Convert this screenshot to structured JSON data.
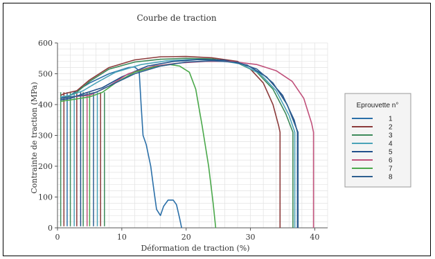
{
  "chart_data": {
    "type": "line",
    "title": "Courbe de traction",
    "xlabel": "Déformation de traction (%)",
    "ylabel": "Contrainte de traction (MPa)",
    "xlim": [
      0,
      42
    ],
    "ylim": [
      0,
      600
    ],
    "xticks": [
      0,
      10,
      20,
      30,
      40
    ],
    "yticks": [
      0,
      100,
      200,
      300,
      400,
      500,
      600
    ],
    "grid": true,
    "legend_position": "right",
    "legend_title": "Eprouvette n°",
    "series": [
      {
        "name": "1",
        "color": "#2a6fa8",
        "points": [
          [
            0.5,
            420
          ],
          [
            1,
            425
          ],
          [
            2,
            430
          ],
          [
            3,
            445
          ],
          [
            5,
            470
          ],
          [
            8,
            500
          ],
          [
            11,
            520
          ],
          [
            12,
            522
          ],
          [
            12.7,
            510
          ],
          [
            13,
            400
          ],
          [
            13.3,
            300
          ],
          [
            13.8,
            270
          ],
          [
            14.5,
            200
          ],
          [
            15,
            120
          ],
          [
            15.4,
            60
          ],
          [
            16,
            40
          ],
          [
            16.5,
            70
          ],
          [
            17.2,
            90
          ],
          [
            18,
            90
          ],
          [
            18.5,
            75
          ],
          [
            19,
            30
          ],
          [
            19.3,
            0
          ]
        ]
      },
      {
        "name": "2",
        "color": "#8b3a3a",
        "points": [
          [
            0.5,
            430
          ],
          [
            1,
            435
          ],
          [
            2,
            440
          ],
          [
            3,
            445
          ],
          [
            5,
            480
          ],
          [
            8,
            520
          ],
          [
            12,
            545
          ],
          [
            16,
            555
          ],
          [
            20,
            556
          ],
          [
            24,
            552
          ],
          [
            28,
            540
          ],
          [
            30,
            515
          ],
          [
            32,
            470
          ],
          [
            33.5,
            400
          ],
          [
            34.4,
            330
          ],
          [
            34.6,
            310
          ],
          [
            34.6,
            0
          ]
        ]
      },
      {
        "name": "3",
        "color": "#3d8a5a",
        "points": [
          [
            0.7,
            420
          ],
          [
            1.5,
            425
          ],
          [
            3,
            440
          ],
          [
            5,
            475
          ],
          [
            8,
            515
          ],
          [
            12,
            538
          ],
          [
            16,
            547
          ],
          [
            20,
            550
          ],
          [
            24,
            548
          ],
          [
            28,
            535
          ],
          [
            31,
            505
          ],
          [
            33.5,
            450
          ],
          [
            35.5,
            370
          ],
          [
            36.6,
            310
          ],
          [
            36.6,
            0
          ]
        ]
      },
      {
        "name": "4",
        "color": "#4aa3b8",
        "points": [
          [
            0.5,
            425
          ],
          [
            2,
            430
          ],
          [
            4,
            445
          ],
          [
            6,
            470
          ],
          [
            9,
            505
          ],
          [
            13,
            530
          ],
          [
            17,
            542
          ],
          [
            21,
            546
          ],
          [
            25,
            544
          ],
          [
            28.5,
            532
          ],
          [
            31.5,
            500
          ],
          [
            34,
            445
          ],
          [
            36,
            365
          ],
          [
            36.9,
            310
          ],
          [
            36.9,
            0
          ]
        ]
      },
      {
        "name": "5",
        "color": "#1f4f8a",
        "points": [
          [
            0.5,
            415
          ],
          [
            2,
            420
          ],
          [
            4,
            435
          ],
          [
            7,
            455
          ],
          [
            10,
            490
          ],
          [
            14,
            525
          ],
          [
            18,
            540
          ],
          [
            22,
            546
          ],
          [
            26,
            544
          ],
          [
            29.5,
            528
          ],
          [
            32.5,
            490
          ],
          [
            35,
            430
          ],
          [
            36.8,
            350
          ],
          [
            37.3,
            310
          ],
          [
            37.3,
            0
          ]
        ]
      },
      {
        "name": "6",
        "color": "#c0507a",
        "points": [
          [
            0.5,
            420
          ],
          [
            2,
            425
          ],
          [
            5,
            430
          ],
          [
            8,
            460
          ],
          [
            11,
            500
          ],
          [
            15,
            525
          ],
          [
            19,
            535
          ],
          [
            23,
            540
          ],
          [
            27,
            540
          ],
          [
            31,
            530
          ],
          [
            34,
            510
          ],
          [
            36.5,
            475
          ],
          [
            38.3,
            420
          ],
          [
            39.5,
            340
          ],
          [
            39.8,
            310
          ],
          [
            39.8,
            0
          ]
        ]
      },
      {
        "name": "7",
        "color": "#4aa84a",
        "points": [
          [
            0.5,
            410
          ],
          [
            2,
            415
          ],
          [
            5,
            425
          ],
          [
            7,
            440
          ],
          [
            9,
            470
          ],
          [
            12,
            505
          ],
          [
            15,
            522
          ],
          [
            17.5,
            530
          ],
          [
            19,
            525
          ],
          [
            20.5,
            505
          ],
          [
            21.5,
            450
          ],
          [
            22.5,
            330
          ],
          [
            23.5,
            200
          ],
          [
            24.2,
            80
          ],
          [
            24.6,
            0
          ]
        ]
      },
      {
        "name": "8",
        "color": "#2e5f8f",
        "points": [
          [
            0.5,
            420
          ],
          [
            2,
            425
          ],
          [
            4,
            430
          ],
          [
            6,
            440
          ],
          [
            9,
            470
          ],
          [
            12,
            500
          ],
          [
            16,
            525
          ],
          [
            20,
            538
          ],
          [
            24,
            542
          ],
          [
            28,
            537
          ],
          [
            31,
            515
          ],
          [
            33.5,
            470
          ],
          [
            35.7,
            400
          ],
          [
            37,
            330
          ],
          [
            37.4,
            310
          ],
          [
            37.4,
            0
          ]
        ]
      }
    ],
    "unloading_lines": [
      {
        "x": 0.5,
        "color": "#3d8a5a"
      },
      {
        "x": 1.0,
        "color": "#8b3a3a"
      },
      {
        "x": 1.5,
        "color": "#2a6fa8"
      },
      {
        "x": 2.0,
        "color": "#3d8a5a"
      },
      {
        "x": 2.6,
        "color": "#4aa3b8"
      },
      {
        "x": 3.0,
        "color": "#8b3a3a"
      },
      {
        "x": 3.6,
        "color": "#1f4f8a"
      },
      {
        "x": 4.0,
        "color": "#3d8a5a"
      },
      {
        "x": 4.6,
        "color": "#c0507a"
      },
      {
        "x": 5.0,
        "color": "#4aa84a"
      },
      {
        "x": 5.6,
        "color": "#2e5f8f"
      },
      {
        "x": 6.2,
        "color": "#4aa3b8"
      },
      {
        "x": 6.7,
        "color": "#8b3a3a"
      },
      {
        "x": 7.3,
        "color": "#3d8a5a"
      }
    ]
  }
}
